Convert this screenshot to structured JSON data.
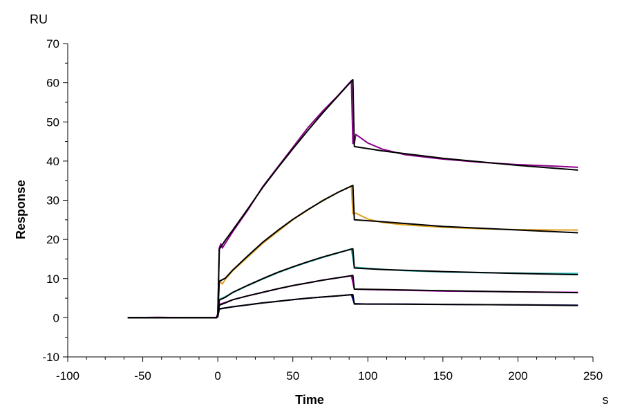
{
  "chart_data": {
    "type": "line",
    "title": "",
    "xlabel": "Time",
    "ylabel": "Response",
    "y_unit": "RU",
    "x_unit": "s",
    "xlim": [
      -100,
      250
    ],
    "ylim": [
      -10,
      70
    ],
    "x_ticks": [
      -100,
      -50,
      0,
      50,
      100,
      150,
      200,
      250
    ],
    "y_ticks": [
      -10,
      0,
      10,
      20,
      30,
      40,
      50,
      60,
      70
    ],
    "x_tick_labels": [
      "-100",
      "-50",
      "0",
      "50",
      "100",
      "150",
      "200",
      "250"
    ],
    "y_tick_labels": [
      "-10",
      "0",
      "10",
      "20",
      "30",
      "40",
      "50",
      "60",
      "70"
    ],
    "grid": false,
    "legend": "none",
    "fit_color": "#000000",
    "series": [
      {
        "color": "#8B008B",
        "points": [
          [
            -60,
            0
          ],
          [
            -40,
            0.1
          ],
          [
            -20,
            0
          ],
          [
            -1,
            0
          ],
          [
            0,
            1
          ],
          [
            1,
            17.8
          ],
          [
            2,
            18.9
          ],
          [
            3,
            17.8
          ],
          [
            5,
            19
          ],
          [
            10,
            22
          ],
          [
            20,
            27.5
          ],
          [
            30,
            33.5
          ],
          [
            40,
            38.5
          ],
          [
            50,
            43.5
          ],
          [
            60,
            48.5
          ],
          [
            70,
            52.8
          ],
          [
            80,
            56.7
          ],
          [
            89,
            60.5
          ],
          [
            90,
            44.5
          ],
          [
            91,
            44.5
          ],
          [
            92,
            46.8
          ],
          [
            95,
            46
          ],
          [
            100,
            44.6
          ],
          [
            110,
            43
          ],
          [
            125,
            41.6
          ],
          [
            150,
            40.5
          ],
          [
            175,
            39.7
          ],
          [
            200,
            39.1
          ],
          [
            225,
            38.7
          ],
          [
            240,
            38.4
          ]
        ],
        "fit": [
          [
            -60,
            0
          ],
          [
            -1,
            0
          ],
          [
            0,
            0.5
          ],
          [
            1,
            17.5
          ],
          [
            5,
            19.8
          ],
          [
            10,
            22.4
          ],
          [
            20,
            27.8
          ],
          [
            30,
            33.3
          ],
          [
            40,
            38.3
          ],
          [
            50,
            43.1
          ],
          [
            60,
            47.8
          ],
          [
            70,
            52.3
          ],
          [
            80,
            56.6
          ],
          [
            90,
            60.8
          ],
          [
            91,
            43.7
          ],
          [
            110,
            42.6
          ],
          [
            150,
            40.7
          ],
          [
            200,
            38.9
          ],
          [
            240,
            37.7
          ]
        ]
      },
      {
        "color": "#E0A020",
        "points": [
          [
            -60,
            0
          ],
          [
            -1,
            0
          ],
          [
            0,
            1
          ],
          [
            1,
            9.5
          ],
          [
            3,
            8.6
          ],
          [
            5,
            9.8
          ],
          [
            10,
            12
          ],
          [
            20,
            15.5
          ],
          [
            30,
            19
          ],
          [
            40,
            22
          ],
          [
            50,
            25
          ],
          [
            60,
            27.5
          ],
          [
            70,
            30
          ],
          [
            80,
            32
          ],
          [
            89,
            33.6
          ],
          [
            90,
            26.5
          ],
          [
            92,
            26.7
          ],
          [
            100,
            25.2
          ],
          [
            110,
            24.3
          ],
          [
            125,
            23.7
          ],
          [
            150,
            23.1
          ],
          [
            175,
            22.7
          ],
          [
            200,
            22.5
          ],
          [
            225,
            22.4
          ],
          [
            240,
            22.4
          ]
        ],
        "fit": [
          [
            -60,
            0
          ],
          [
            -1,
            0
          ],
          [
            0,
            0.5
          ],
          [
            1,
            9.3
          ],
          [
            5,
            10.1
          ],
          [
            10,
            12.2
          ],
          [
            20,
            15.8
          ],
          [
            30,
            19.3
          ],
          [
            40,
            22.3
          ],
          [
            50,
            25.1
          ],
          [
            60,
            27.6
          ],
          [
            70,
            29.9
          ],
          [
            80,
            32
          ],
          [
            90,
            33.8
          ],
          [
            91,
            25
          ],
          [
            110,
            24.5
          ],
          [
            150,
            23.3
          ],
          [
            200,
            22.4
          ],
          [
            240,
            21.7
          ]
        ]
      },
      {
        "color": "#20B0B0",
        "points": [
          [
            -60,
            0
          ],
          [
            -1,
            0
          ],
          [
            0,
            1
          ],
          [
            1,
            4.7
          ],
          [
            3,
            5
          ],
          [
            10,
            6.4
          ],
          [
            20,
            8.2
          ],
          [
            30,
            9.9
          ],
          [
            40,
            11.5
          ],
          [
            50,
            12.9
          ],
          [
            60,
            14.2
          ],
          [
            70,
            15.4
          ],
          [
            80,
            16.5
          ],
          [
            89,
            17.6
          ],
          [
            91,
            12.9
          ],
          [
            100,
            12.6
          ],
          [
            125,
            12
          ],
          [
            150,
            11.7
          ],
          [
            175,
            11.5
          ],
          [
            200,
            11.4
          ],
          [
            225,
            11.3
          ],
          [
            240,
            11.3
          ]
        ],
        "fit": [
          [
            -60,
            0
          ],
          [
            -1,
            0
          ],
          [
            0,
            0.3
          ],
          [
            1,
            4.5
          ],
          [
            5,
            5.2
          ],
          [
            10,
            6.5
          ],
          [
            20,
            8.3
          ],
          [
            30,
            10
          ],
          [
            40,
            11.6
          ],
          [
            50,
            13
          ],
          [
            60,
            14.3
          ],
          [
            70,
            15.5
          ],
          [
            80,
            16.6
          ],
          [
            90,
            17.6
          ],
          [
            91,
            12.7
          ],
          [
            110,
            12.3
          ],
          [
            150,
            11.8
          ],
          [
            200,
            11.3
          ],
          [
            240,
            11
          ]
        ]
      },
      {
        "color": "#C000C0",
        "points": [
          [
            -60,
            0
          ],
          [
            -1,
            0
          ],
          [
            0,
            1
          ],
          [
            1,
            3.4
          ],
          [
            5,
            3.9
          ],
          [
            10,
            4.6
          ],
          [
            20,
            5.6
          ],
          [
            30,
            6.5
          ],
          [
            40,
            7.4
          ],
          [
            50,
            8.2
          ],
          [
            60,
            8.9
          ],
          [
            70,
            9.6
          ],
          [
            80,
            10.2
          ],
          [
            89,
            10.7
          ],
          [
            91,
            7.3
          ],
          [
            100,
            7.2
          ],
          [
            125,
            7
          ],
          [
            150,
            6.8
          ],
          [
            175,
            6.7
          ],
          [
            200,
            6.6
          ],
          [
            240,
            6.5
          ]
        ],
        "fit": [
          [
            -60,
            0
          ],
          [
            -1,
            0
          ],
          [
            0,
            0.3
          ],
          [
            1,
            3.2
          ],
          [
            5,
            3.8
          ],
          [
            10,
            4.6
          ],
          [
            20,
            5.6
          ],
          [
            30,
            6.5
          ],
          [
            40,
            7.4
          ],
          [
            50,
            8.2
          ],
          [
            60,
            8.9
          ],
          [
            70,
            9.6
          ],
          [
            80,
            10.2
          ],
          [
            90,
            10.8
          ],
          [
            91,
            7.3
          ],
          [
            110,
            7.2
          ],
          [
            150,
            6.9
          ],
          [
            200,
            6.6
          ],
          [
            240,
            6.4
          ]
        ]
      },
      {
        "color": "#1010A0",
        "points": [
          [
            -60,
            0
          ],
          [
            -1,
            0
          ],
          [
            0,
            0.5
          ],
          [
            1,
            2.3
          ],
          [
            10,
            2.8
          ],
          [
            20,
            3.3
          ],
          [
            30,
            3.8
          ],
          [
            40,
            4.2
          ],
          [
            50,
            4.6
          ],
          [
            60,
            5
          ],
          [
            70,
            5.3
          ],
          [
            80,
            5.6
          ],
          [
            89,
            5.9
          ],
          [
            91,
            3.6
          ],
          [
            100,
            3.5
          ],
          [
            125,
            3.5
          ],
          [
            150,
            3.4
          ],
          [
            200,
            3.3
          ],
          [
            240,
            3.2
          ]
        ],
        "fit": [
          [
            -60,
            0
          ],
          [
            -1,
            0
          ],
          [
            0,
            0.2
          ],
          [
            1,
            2.2
          ],
          [
            10,
            2.8
          ],
          [
            20,
            3.3
          ],
          [
            30,
            3.8
          ],
          [
            40,
            4.2
          ],
          [
            50,
            4.6
          ],
          [
            60,
            5
          ],
          [
            70,
            5.3
          ],
          [
            80,
            5.6
          ],
          [
            90,
            5.9
          ],
          [
            91,
            3.5
          ],
          [
            110,
            3.5
          ],
          [
            150,
            3.4
          ],
          [
            200,
            3.3
          ],
          [
            240,
            3.1
          ]
        ]
      }
    ]
  }
}
